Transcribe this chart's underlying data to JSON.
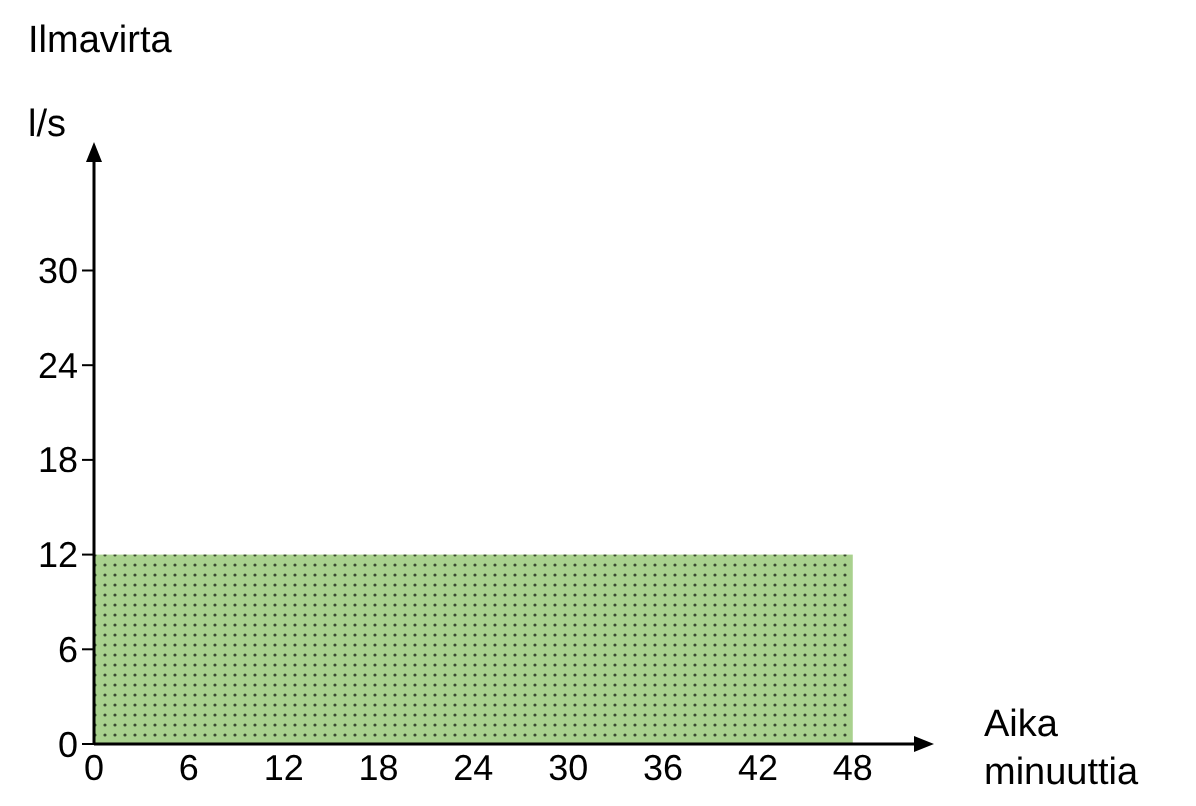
{
  "chart_data": {
    "type": "histogram",
    "ylabel": "Ilmavirta\nl/s",
    "xlabel": "Aika\nminuuttia",
    "bins": [
      0,
      48
    ],
    "values": [
      12
    ],
    "color": "#a9d18e",
    "xlim": [
      0,
      52
    ],
    "ylim": [
      0,
      37
    ],
    "xticks": [
      0,
      6,
      12,
      18,
      24,
      30,
      36,
      42,
      48
    ],
    "yticks": [
      0,
      6,
      12,
      18,
      24,
      30
    ],
    "grid": false
  }
}
